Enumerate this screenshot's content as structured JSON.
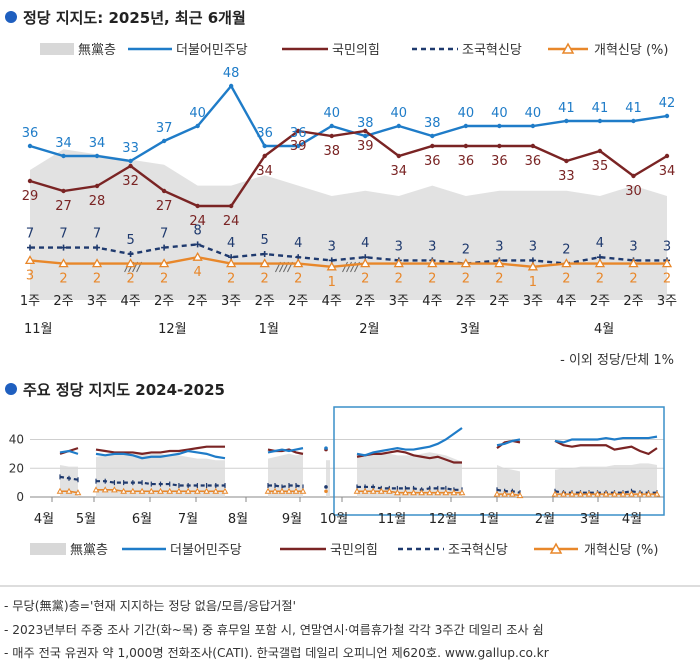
{
  "colors": {
    "dem": "#1f7cc8",
    "ppp": "#7a2424",
    "rebuild": "#1f3a6e",
    "reform": "#e8872a",
    "noparty": "#d8d8d8",
    "heading_dot": "#1f5fbf",
    "frame": "#3a8fc9"
  },
  "top": {
    "title": "정당 지지도: 2025년, 최근 6개월",
    "note_right": "- 이외 정당/단체 1%"
  },
  "legend": {
    "noparty": "無黨층",
    "dem": "더불어민주당",
    "ppp": "국민의힘",
    "rebuild": "조국혁신당",
    "reform": "개혁신당 (%)",
    "reform_bottom": "개혁신당 (%)"
  },
  "bottom": {
    "title": "주요 정당 지지도 2024-2025"
  },
  "notes": [
    "- 무당(無黨)층='현재 지지하는 정당 없음/모름/응답거절'",
    "- 2023년부터 주중 조사 기간(화~목) 중 휴무일 포함 시, 연말연시·여름휴가철 각각 3주간 데일리 조사 쉼",
    "- 매주 전국 유권자 약 1,000명 전화조사(CATI). 한국갤럽 데일리 오피니언 제620호. www.gallup.co.kr"
  ],
  "chart_data": [
    {
      "type": "line",
      "title": "정당 지지도: 2025년, 최근 6개월",
      "unit": "%",
      "categories": [
        "1주",
        "2주",
        "3주",
        "4주",
        "2주",
        "2주",
        "3주",
        "2주",
        "2주",
        "4주",
        "2주",
        "3주",
        "4주",
        "2주",
        "2주",
        "3주",
        "4주",
        "2주",
        "2주",
        "3주"
      ],
      "months": [
        {
          "label": "11월",
          "at": 0
        },
        {
          "label": "12월",
          "at": 4
        },
        {
          "label": "1월",
          "at": 7
        },
        {
          "label": "2월",
          "at": 10
        },
        {
          "label": "3월",
          "at": 13
        },
        {
          "label": "4월",
          "at": 17
        }
      ],
      "series": [
        {
          "name": "더불어민주당",
          "color_key": "dem",
          "values": [
            36,
            34,
            34,
            33,
            37,
            40,
            48,
            36,
            36,
            40,
            38,
            40,
            38,
            40,
            40,
            40,
            41,
            41,
            41,
            42
          ]
        },
        {
          "name": "국민의힘",
          "color_key": "ppp",
          "values": [
            29,
            27,
            28,
            32,
            27,
            24,
            24,
            34,
            39,
            38,
            39,
            34,
            36,
            36,
            36,
            36,
            33,
            35,
            30,
            34
          ]
        },
        {
          "name": "조국혁신당",
          "color_key": "rebuild",
          "values": [
            7,
            7,
            7,
            5,
            7,
            8,
            4,
            5,
            4,
            3,
            4,
            3,
            3,
            2,
            3,
            3,
            2,
            4,
            3,
            3
          ]
        },
        {
          "name": "개혁신당",
          "color_key": "reform",
          "values": [
            3,
            2,
            2,
            2,
            2,
            4,
            2,
            2,
            2,
            1,
            2,
            2,
            2,
            2,
            2,
            1,
            2,
            2,
            2,
            2
          ]
        },
        {
          "name": "無黨층",
          "color_key": "noparty",
          "values": [
            25,
            29,
            28,
            27,
            26,
            22,
            22,
            24,
            22,
            20,
            21,
            20,
            22,
            20,
            21,
            21,
            21,
            20,
            22,
            20
          ]
        }
      ]
    },
    {
      "type": "line",
      "title": "주요 정당 지지도 2024-2025",
      "unit": "%",
      "yticks": [
        0,
        20,
        40
      ],
      "ylim": [
        0,
        48
      ],
      "x_labels": [
        "4월",
        "5월",
        "6월",
        "7월",
        "8월",
        "9월",
        "10월",
        "11월",
        "12월",
        "1월",
        "2월",
        "3월",
        "4월"
      ],
      "segments": [
        {
          "dem": [
            31,
            32,
            30
          ],
          "ppp": [
            30,
            32,
            34
          ],
          "rebuild": [
            14,
            13,
            12
          ],
          "reform": [
            4,
            4,
            3
          ],
          "noparty": [
            20,
            19,
            19
          ]
        },
        {
          "dem": [
            30,
            29,
            30,
            30,
            29,
            27,
            28,
            28,
            29,
            30,
            32,
            31,
            30,
            28,
            27
          ],
          "ppp": [
            33,
            32,
            31,
            31,
            31,
            30,
            31,
            31,
            32,
            32,
            33,
            34,
            35,
            35,
            35
          ],
          "rebuild": [
            11,
            11,
            10,
            10,
            10,
            10,
            9,
            9,
            9,
            8,
            8,
            8,
            8,
            8,
            8
          ],
          "reform": [
            5,
            5,
            5,
            4,
            4,
            4,
            4,
            4,
            4,
            4,
            4,
            4,
            4,
            4,
            4
          ],
          "noparty": [
            25,
            26,
            27,
            27,
            28,
            28,
            27,
            27,
            26,
            26,
            25,
            24,
            24,
            23,
            23
          ]
        },
        {
          "dem": [
            31,
            32,
            33,
            32,
            33,
            34
          ],
          "ppp": [
            33,
            32,
            32,
            33,
            31,
            30
          ],
          "rebuild": [
            8,
            8,
            7,
            8,
            8,
            7
          ],
          "reform": [
            4,
            4,
            4,
            4,
            4,
            4
          ],
          "noparty": [
            24,
            25,
            26,
            27,
            26,
            27
          ]
        },
        {
          "dem": [
            34
          ],
          "ppp": [
            33
          ],
          "rebuild": [
            7
          ],
          "reform": [
            4
          ],
          "noparty": [
            23
          ]
        },
        {
          "dem": [
            30,
            29,
            31,
            32,
            33,
            34,
            33,
            33,
            34,
            35,
            37,
            40,
            44,
            48
          ],
          "ppp": [
            28,
            29,
            30,
            30,
            31,
            32,
            31,
            29,
            28,
            27,
            28,
            26,
            24,
            24
          ],
          "rebuild": [
            7,
            7,
            7,
            6,
            6,
            6,
            6,
            6,
            5,
            6,
            6,
            6,
            5,
            5
          ],
          "reform": [
            4,
            4,
            4,
            4,
            4,
            3,
            3,
            3,
            3,
            3,
            3,
            3,
            3,
            3
          ],
          "noparty": [
            26,
            27,
            27,
            27,
            27,
            26,
            26,
            26,
            27,
            28,
            27,
            26,
            24,
            22
          ]
        },
        {
          "dem": [
            36,
            37,
            39,
            40
          ],
          "ppp": [
            34,
            38,
            39,
            38
          ],
          "rebuild": [
            5,
            4,
            4,
            3
          ],
          "reform": [
            2,
            2,
            2,
            1
          ],
          "noparty": [
            20,
            18,
            17,
            16
          ]
        },
        {
          "dem": [
            39,
            38,
            40,
            40,
            40,
            40,
            41,
            40,
            41,
            41,
            41,
            41,
            42
          ],
          "ppp": [
            39,
            36,
            35,
            36,
            36,
            36,
            36,
            33,
            34,
            35,
            32,
            30,
            34
          ],
          "rebuild": [
            4,
            3,
            3,
            3,
            3,
            3,
            3,
            3,
            3,
            4,
            3,
            3,
            3
          ],
          "reform": [
            2,
            2,
            2,
            2,
            2,
            2,
            2,
            2,
            2,
            2,
            2,
            2,
            2
          ],
          "noparty": [
            17,
            18,
            18,
            19,
            19,
            19,
            19,
            20,
            20,
            20,
            21,
            21,
            20
          ]
        }
      ]
    }
  ]
}
